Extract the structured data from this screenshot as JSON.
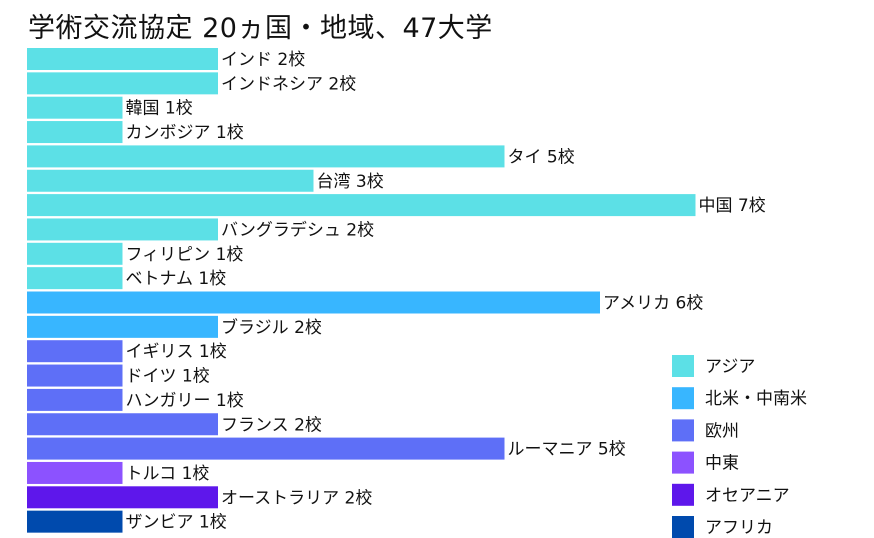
{
  "chart_data": {
    "type": "bar",
    "orientation": "horizontal",
    "title": "学術交流協定 20ヵ国・地域、47大学",
    "unit": "校",
    "legend_position": "bottom-right",
    "grid": false,
    "xlim": [
      0,
      7
    ],
    "regions": [
      {
        "name": "アジア",
        "color": "#5ce0e6"
      },
      {
        "name": "北米・中南米",
        "color": "#38b6ff"
      },
      {
        "name": "欧州",
        "color": "#5e6ff7"
      },
      {
        "name": "中東",
        "color": "#8c52ff"
      },
      {
        "name": "オセアニア",
        "color": "#5e17eb"
      },
      {
        "name": "アフリカ",
        "color": "#004aad"
      }
    ],
    "bars": [
      {
        "country": "インド",
        "value": 2,
        "label": "インド 2校",
        "region": 0
      },
      {
        "country": "インドネシア",
        "value": 2,
        "label": "インドネシア 2校",
        "region": 0
      },
      {
        "country": "韓国",
        "value": 1,
        "label": "韓国 1校",
        "region": 0
      },
      {
        "country": "カンボジア",
        "value": 1,
        "label": "カンボジア 1校",
        "region": 0
      },
      {
        "country": "タイ",
        "value": 5,
        "label": "タイ 5校",
        "region": 0
      },
      {
        "country": "台湾",
        "value": 3,
        "label": "台湾 3校",
        "region": 0
      },
      {
        "country": "中国",
        "value": 7,
        "label": "中国 7校",
        "region": 0
      },
      {
        "country": "バングラデシュ",
        "value": 2,
        "label": "バングラデシュ 2校",
        "region": 0
      },
      {
        "country": "フィリピン",
        "value": 1,
        "label": "フィリピン 1校",
        "region": 0
      },
      {
        "country": "ベトナム",
        "value": 1,
        "label": "ベトナム 1校",
        "region": 0
      },
      {
        "country": "アメリカ",
        "value": 6,
        "label": "アメリカ 6校",
        "region": 1
      },
      {
        "country": "ブラジル",
        "value": 2,
        "label": "ブラジル 2校",
        "region": 1
      },
      {
        "country": "イギリス",
        "value": 1,
        "label": "イギリス 1校",
        "region": 2
      },
      {
        "country": "ドイツ",
        "value": 1,
        "label": "ドイツ 1校",
        "region": 2
      },
      {
        "country": "ハンガリー",
        "value": 1,
        "label": "ハンガリー 1校",
        "region": 2
      },
      {
        "country": "フランス",
        "value": 2,
        "label": "フランス 2校",
        "region": 2
      },
      {
        "country": "ルーマニア",
        "value": 5,
        "label": "ルーマニア 5校",
        "region": 2
      },
      {
        "country": "トルコ",
        "value": 1,
        "label": "トルコ 1校",
        "region": 3
      },
      {
        "country": "オーストラリア",
        "value": 2,
        "label": "オーストラリア 2校",
        "region": 4
      },
      {
        "country": "ザンビア",
        "value": 1,
        "label": "ザンビア 1校",
        "region": 5
      }
    ]
  }
}
